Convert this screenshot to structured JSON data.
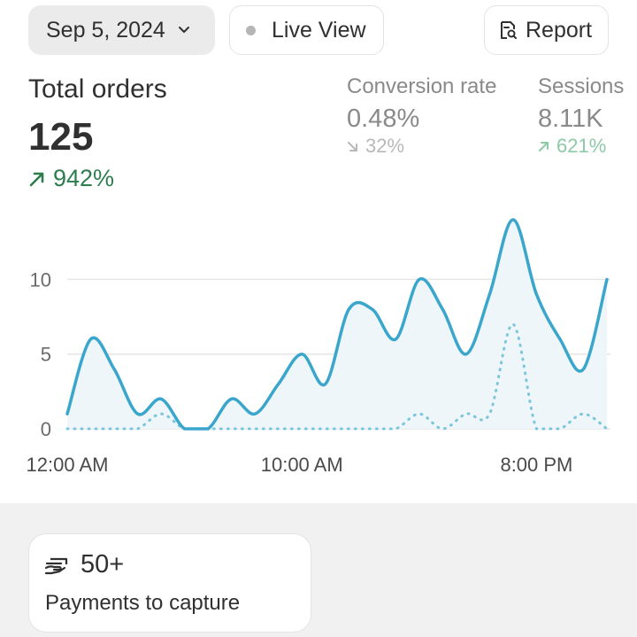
{
  "toolbar": {
    "date_label": "Sep 5, 2024",
    "live_label": "Live View",
    "report_label": "Report"
  },
  "metrics": {
    "total_orders": {
      "label": "Total orders",
      "value": "125",
      "delta": "942%",
      "direction": "up"
    },
    "conversion_rate": {
      "label": "Conversion rate",
      "value": "0.48%",
      "delta": "32%",
      "direction": "down"
    },
    "sessions": {
      "label": "Sessions",
      "value": "8.11K",
      "delta": "621%",
      "direction": "up"
    }
  },
  "colors": {
    "accent_line": "#3aa6cc",
    "positive": "#2e7d4f",
    "muted": "#8a8a8a"
  },
  "chart_data": {
    "type": "line",
    "x": [
      "12:00 AM",
      "1:00 AM",
      "2:00 AM",
      "3:00 AM",
      "4:00 AM",
      "5:00 AM",
      "6:00 AM",
      "7:00 AM",
      "8:00 AM",
      "9:00 AM",
      "10:00 AM",
      "11:00 AM",
      "12:00 PM",
      "1:00 PM",
      "2:00 PM",
      "3:00 PM",
      "4:00 PM",
      "5:00 PM",
      "6:00 PM",
      "7:00 PM",
      "8:00 PM",
      "9:00 PM",
      "10:00 PM",
      "11:00 PM"
    ],
    "x_tick_labels": [
      "12:00 AM",
      "10:00 AM",
      "8:00 PM"
    ],
    "y_ticks": [
      0,
      5,
      10
    ],
    "ylim": [
      0,
      14
    ],
    "series": [
      {
        "style": "solid",
        "values": [
          1,
          6,
          4,
          1,
          2,
          0,
          0,
          2,
          1,
          3,
          5,
          3,
          8,
          8,
          6,
          10,
          8,
          5,
          9,
          14,
          9,
          6,
          4,
          10
        ]
      },
      {
        "style": "dotted",
        "values": [
          0,
          0,
          0,
          0,
          1,
          0,
          0,
          0,
          0,
          0,
          0,
          0,
          0,
          0,
          0,
          1,
          0,
          1,
          1,
          7,
          0,
          0,
          1,
          0
        ]
      }
    ],
    "grid": true
  },
  "card": {
    "icon": "payment-icon",
    "value": "50+",
    "label": "Payments to capture"
  }
}
